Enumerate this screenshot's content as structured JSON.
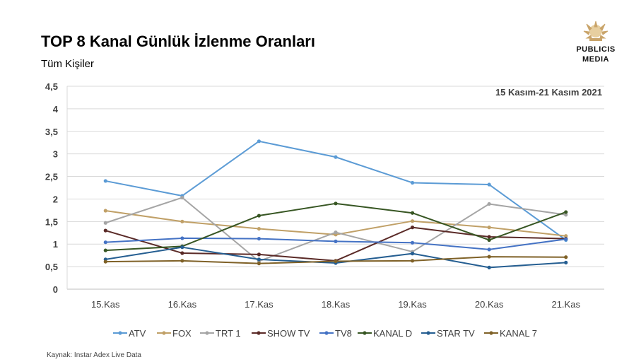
{
  "header": {
    "title": "TOP 8 Kanal Günlük İzlenme Oranları",
    "subtitle": "Tüm Kişiler",
    "logo_line1": "PUBLICIS",
    "logo_line2": "MEDIA"
  },
  "footer": {
    "source": "Kaynak: Instar  Adex Live Data"
  },
  "chart_data": {
    "type": "line",
    "title": "TOP 8 Kanal Günlük İzlenme Oranları",
    "subtitle": "Tüm Kişiler",
    "annotation": "15 Kasım-21 Kasım 2021",
    "categories": [
      "15.Kas",
      "16.Kas",
      "17.Kas",
      "18.Kas",
      "19.Kas",
      "20.Kas",
      "21.Kas"
    ],
    "ylim": [
      0,
      4.5
    ],
    "yticks": [
      "0",
      "0,5",
      "1",
      "1,5",
      "2",
      "2,5",
      "3",
      "3,5",
      "4",
      "4,5"
    ],
    "grid": true,
    "legend_position": "bottom",
    "series": [
      {
        "name": "ATV",
        "color": "#5b9bd5",
        "values": [
          2.4,
          2.07,
          3.28,
          2.93,
          2.36,
          2.32,
          1.09
        ]
      },
      {
        "name": "FOX",
        "color": "#c0a067",
        "values": [
          1.74,
          1.5,
          1.34,
          1.21,
          1.51,
          1.37,
          1.18
        ]
      },
      {
        "name": "TRT 1",
        "color": "#a5a5a5",
        "values": [
          1.47,
          2.03,
          0.62,
          1.26,
          0.83,
          1.89,
          1.65
        ]
      },
      {
        "name": "SHOW TV",
        "color": "#5a2a27",
        "values": [
          1.3,
          0.8,
          0.77,
          0.63,
          1.37,
          1.16,
          1.12
        ]
      },
      {
        "name": "TV8",
        "color": "#4472c4",
        "values": [
          1.04,
          1.13,
          1.12,
          1.06,
          1.03,
          0.88,
          1.11
        ]
      },
      {
        "name": "KANAL D",
        "color": "#375623",
        "values": [
          0.86,
          0.95,
          1.63,
          1.9,
          1.69,
          1.09,
          1.71
        ]
      },
      {
        "name": "STAR TV",
        "color": "#255e91",
        "values": [
          0.66,
          0.93,
          0.66,
          0.58,
          0.79,
          0.48,
          0.59
        ]
      },
      {
        "name": "KANAL 7",
        "color": "#7f6127",
        "values": [
          0.61,
          0.63,
          0.57,
          0.62,
          0.63,
          0.72,
          0.71
        ]
      }
    ]
  }
}
